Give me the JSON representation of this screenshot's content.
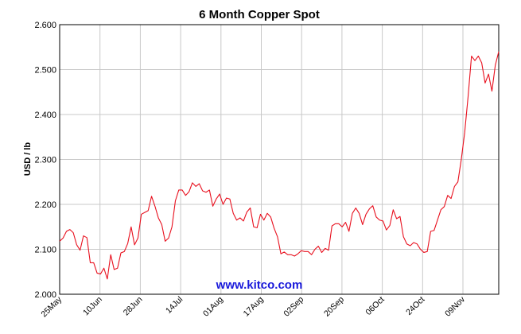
{
  "chart_data": {
    "type": "line",
    "title": "6 Month Copper Spot",
    "ylabel": "USD / lb",
    "xlabel": "",
    "watermark": "www.kitco.com",
    "ylim": [
      2.0,
      2.6
    ],
    "y_ticks": [
      "2.000",
      "2.100",
      "2.200",
      "2.300",
      "2.400",
      "2.500",
      "2.600"
    ],
    "x_ticks": [
      "25May",
      "10Jun",
      "28Jun",
      "14Jul",
      "01Aug",
      "17Aug",
      "02Sep",
      "20Sep",
      "06Oct",
      "24Oct",
      "09Nov"
    ],
    "grid": true,
    "series": [
      {
        "color": "#e8101e",
        "values": [
          2.118,
          2.125,
          2.14,
          2.144,
          2.137,
          2.11,
          2.098,
          2.13,
          2.126,
          2.07,
          2.07,
          2.047,
          2.045,
          2.058,
          2.034,
          2.088,
          2.055,
          2.058,
          2.092,
          2.095,
          2.113,
          2.15,
          2.11,
          2.125,
          2.178,
          2.182,
          2.186,
          2.218,
          2.196,
          2.17,
          2.155,
          2.118,
          2.125,
          2.15,
          2.208,
          2.232,
          2.232,
          2.22,
          2.228,
          2.248,
          2.24,
          2.246,
          2.23,
          2.227,
          2.232,
          2.196,
          2.212,
          2.223,
          2.2,
          2.214,
          2.212,
          2.18,
          2.165,
          2.17,
          2.163,
          2.183,
          2.192,
          2.15,
          2.148,
          2.178,
          2.165,
          2.18,
          2.172,
          2.147,
          2.128,
          2.09,
          2.094,
          2.088,
          2.088,
          2.085,
          2.09,
          2.097,
          2.095,
          2.095,
          2.088,
          2.1,
          2.107,
          2.093,
          2.102,
          2.098,
          2.152,
          2.157,
          2.157,
          2.15,
          2.16,
          2.14,
          2.18,
          2.192,
          2.18,
          2.155,
          2.178,
          2.19,
          2.197,
          2.172,
          2.165,
          2.163,
          2.143,
          2.153,
          2.188,
          2.168,
          2.173,
          2.128,
          2.112,
          2.108,
          2.115,
          2.112,
          2.1,
          2.093,
          2.095,
          2.14,
          2.142,
          2.165,
          2.188,
          2.195,
          2.22,
          2.213,
          2.24,
          2.25,
          2.3,
          2.36,
          2.44,
          2.53,
          2.52,
          2.53,
          2.515,
          2.47,
          2.49,
          2.452,
          2.51,
          2.54
        ]
      }
    ]
  }
}
